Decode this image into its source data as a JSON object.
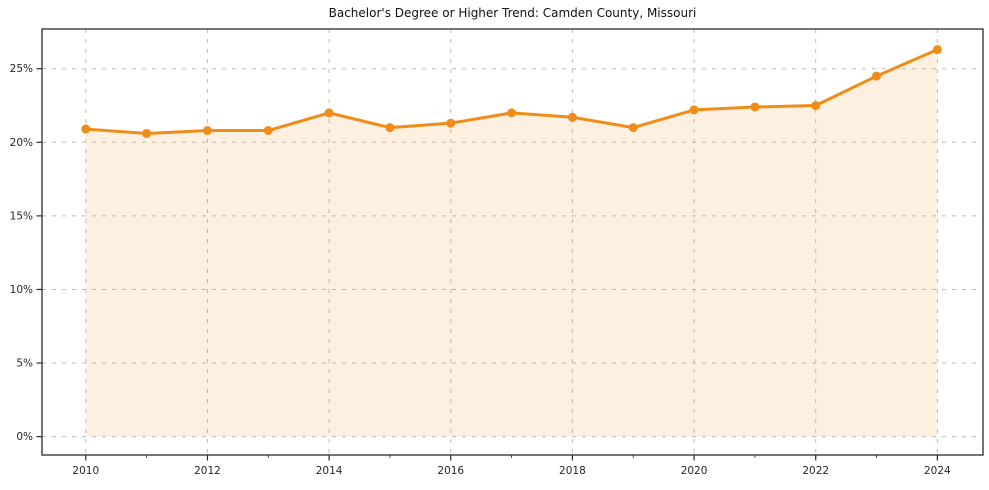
{
  "chart_data": {
    "type": "line",
    "title": "Bachelor's Degree or Higher Trend: Camden County, Missouri",
    "x": [
      2010,
      2011,
      2012,
      2013,
      2014,
      2015,
      2016,
      2017,
      2018,
      2019,
      2020,
      2021,
      2022,
      2023,
      2024
    ],
    "values": [
      20.9,
      20.6,
      20.8,
      20.8,
      22.0,
      21.0,
      21.3,
      22.0,
      21.7,
      21.0,
      22.2,
      22.4,
      22.5,
      24.5,
      26.3
    ],
    "xlabel": "",
    "ylabel": "",
    "xlim": [
      2009.28,
      2024.75
    ],
    "ylim": [
      -1.25,
      27.7
    ],
    "yticks": [
      0,
      5,
      10,
      15,
      20,
      25
    ],
    "ytick_labels": [
      "0%",
      "5%",
      "10%",
      "15%",
      "20%",
      "25%"
    ],
    "xticks": [
      2010,
      2012,
      2014,
      2016,
      2018,
      2020,
      2022,
      2024
    ],
    "xtick_labels": [
      "2010",
      "2012",
      "2014",
      "2016",
      "2018",
      "2020",
      "2022",
      "2024"
    ],
    "xticks_minor": [
      2011,
      2013,
      2015,
      2017,
      2019,
      2021,
      2023
    ],
    "grid": true,
    "legend": false,
    "line_color": "#f08c18",
    "fill_color": "rgba(240,140,24,0.13)",
    "gridline_color": "#bdbdbd",
    "spine_color": "#2b2b2b",
    "tick_color": "#2b2b2b",
    "text_color": "#262626",
    "background": "#ffffff",
    "marker": "circle",
    "line_width": 3,
    "marker_radius": 4.5
  }
}
